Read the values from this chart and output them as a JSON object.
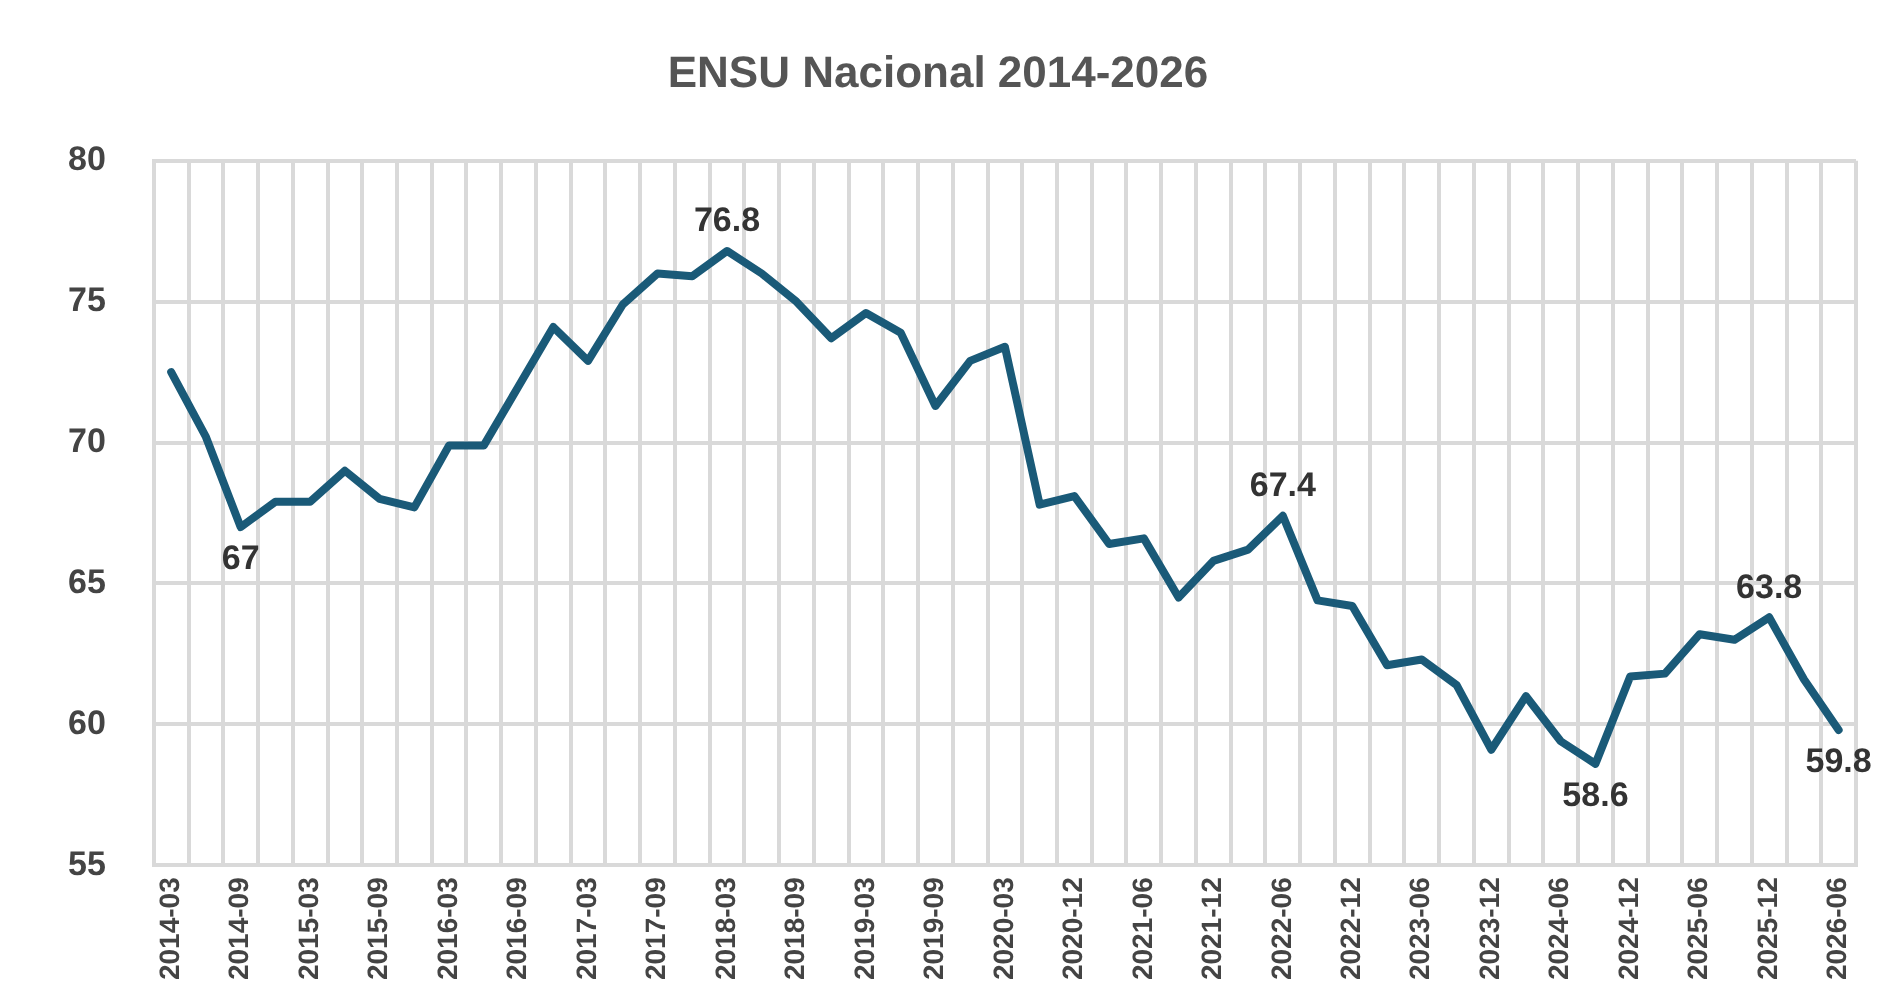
{
  "chart_data": {
    "type": "line",
    "title": "ENSU Nacional 2014-2026",
    "categories": [
      "2014-03",
      null,
      "2014-09",
      null,
      "2015-03",
      null,
      "2015-09",
      null,
      "2016-03",
      null,
      "2016-09",
      null,
      "2017-03",
      null,
      "2017-09",
      null,
      "2018-03",
      null,
      "2018-09",
      null,
      "2019-03",
      null,
      "2019-09",
      null,
      "2020-03",
      null,
      "2020-12",
      null,
      "2021-06",
      null,
      "2021-12",
      null,
      "2022-06",
      null,
      "2022-12",
      null,
      "2023-06",
      null,
      "2023-12",
      null,
      "2024-06",
      null,
      "2024-12",
      null,
      "2025-06",
      null,
      "2025-12",
      null,
      "2026-06"
    ],
    "series": [
      {
        "color": "#1a5a78",
        "values": [
          72.5,
          70.2,
          67,
          67.9,
          67.9,
          69,
          68,
          67.7,
          69.9,
          69.9,
          72,
          74.1,
          72.9,
          74.9,
          76,
          75.9,
          76.8,
          76,
          75,
          73.7,
          74.6,
          73.9,
          71.3,
          72.9,
          73.4,
          67.8,
          68.1,
          66.4,
          66.6,
          64.5,
          65.8,
          66.2,
          67.4,
          64.4,
          64.2,
          62.1,
          62.3,
          61.4,
          59.1,
          61,
          59.4,
          58.6,
          61.7,
          61.8,
          63.2,
          63,
          63.8,
          61.6,
          59.8
        ],
        "value_labels": [
          null,
          null,
          "67",
          null,
          null,
          null,
          null,
          null,
          null,
          null,
          null,
          null,
          null,
          null,
          null,
          null,
          "76.8",
          null,
          null,
          null,
          null,
          null,
          null,
          null,
          null,
          null,
          null,
          null,
          null,
          null,
          null,
          null,
          "67.4",
          null,
          null,
          null,
          null,
          null,
          null,
          null,
          null,
          "58.6",
          null,
          null,
          null,
          null,
          "63.8",
          null,
          "59.8"
        ]
      }
    ],
    "ylim": [
      55,
      80
    ],
    "yticks": [
      55,
      60,
      65,
      70,
      75,
      80
    ],
    "grid": true,
    "legend": false,
    "marker": "none",
    "line_style": "solid"
  }
}
